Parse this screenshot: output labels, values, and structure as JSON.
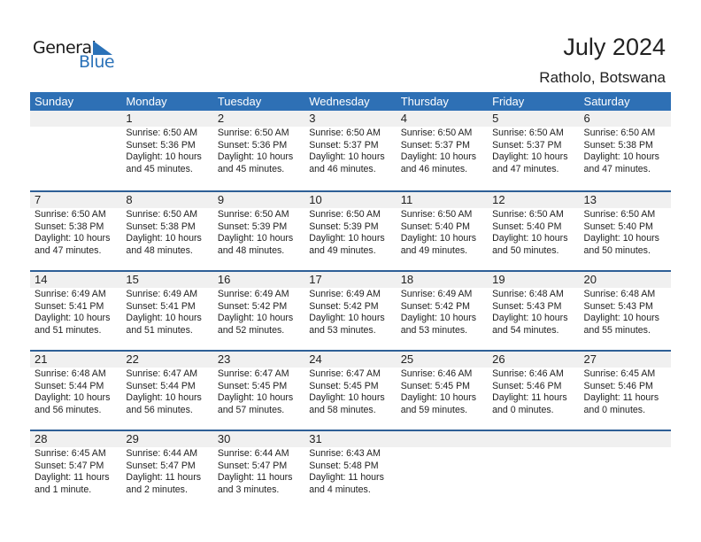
{
  "logo": {
    "text1": "General",
    "text2": "Blue"
  },
  "header": {
    "title": "July 2024",
    "location": "Ratholo, Botswana"
  },
  "weekdays": [
    "Sunday",
    "Monday",
    "Tuesday",
    "Wednesday",
    "Thursday",
    "Friday",
    "Saturday"
  ],
  "colors": {
    "accent": "#2e70b5",
    "band": "#f0f0f0"
  },
  "weeks": [
    [
      null,
      {
        "day": "1",
        "sunrise": "Sunrise: 6:50 AM",
        "sunset": "Sunset: 5:36 PM",
        "daylight1": "Daylight: 10 hours",
        "daylight2": "and 45 minutes."
      },
      {
        "day": "2",
        "sunrise": "Sunrise: 6:50 AM",
        "sunset": "Sunset: 5:36 PM",
        "daylight1": "Daylight: 10 hours",
        "daylight2": "and 45 minutes."
      },
      {
        "day": "3",
        "sunrise": "Sunrise: 6:50 AM",
        "sunset": "Sunset: 5:37 PM",
        "daylight1": "Daylight: 10 hours",
        "daylight2": "and 46 minutes."
      },
      {
        "day": "4",
        "sunrise": "Sunrise: 6:50 AM",
        "sunset": "Sunset: 5:37 PM",
        "daylight1": "Daylight: 10 hours",
        "daylight2": "and 46 minutes."
      },
      {
        "day": "5",
        "sunrise": "Sunrise: 6:50 AM",
        "sunset": "Sunset: 5:37 PM",
        "daylight1": "Daylight: 10 hours",
        "daylight2": "and 47 minutes."
      },
      {
        "day": "6",
        "sunrise": "Sunrise: 6:50 AM",
        "sunset": "Sunset: 5:38 PM",
        "daylight1": "Daylight: 10 hours",
        "daylight2": "and 47 minutes."
      }
    ],
    [
      {
        "day": "7",
        "sunrise": "Sunrise: 6:50 AM",
        "sunset": "Sunset: 5:38 PM",
        "daylight1": "Daylight: 10 hours",
        "daylight2": "and 47 minutes."
      },
      {
        "day": "8",
        "sunrise": "Sunrise: 6:50 AM",
        "sunset": "Sunset: 5:38 PM",
        "daylight1": "Daylight: 10 hours",
        "daylight2": "and 48 minutes."
      },
      {
        "day": "9",
        "sunrise": "Sunrise: 6:50 AM",
        "sunset": "Sunset: 5:39 PM",
        "daylight1": "Daylight: 10 hours",
        "daylight2": "and 48 minutes."
      },
      {
        "day": "10",
        "sunrise": "Sunrise: 6:50 AM",
        "sunset": "Sunset: 5:39 PM",
        "daylight1": "Daylight: 10 hours",
        "daylight2": "and 49 minutes."
      },
      {
        "day": "11",
        "sunrise": "Sunrise: 6:50 AM",
        "sunset": "Sunset: 5:40 PM",
        "daylight1": "Daylight: 10 hours",
        "daylight2": "and 49 minutes."
      },
      {
        "day": "12",
        "sunrise": "Sunrise: 6:50 AM",
        "sunset": "Sunset: 5:40 PM",
        "daylight1": "Daylight: 10 hours",
        "daylight2": "and 50 minutes."
      },
      {
        "day": "13",
        "sunrise": "Sunrise: 6:50 AM",
        "sunset": "Sunset: 5:40 PM",
        "daylight1": "Daylight: 10 hours",
        "daylight2": "and 50 minutes."
      }
    ],
    [
      {
        "day": "14",
        "sunrise": "Sunrise: 6:49 AM",
        "sunset": "Sunset: 5:41 PM",
        "daylight1": "Daylight: 10 hours",
        "daylight2": "and 51 minutes."
      },
      {
        "day": "15",
        "sunrise": "Sunrise: 6:49 AM",
        "sunset": "Sunset: 5:41 PM",
        "daylight1": "Daylight: 10 hours",
        "daylight2": "and 51 minutes."
      },
      {
        "day": "16",
        "sunrise": "Sunrise: 6:49 AM",
        "sunset": "Sunset: 5:42 PM",
        "daylight1": "Daylight: 10 hours",
        "daylight2": "and 52 minutes."
      },
      {
        "day": "17",
        "sunrise": "Sunrise: 6:49 AM",
        "sunset": "Sunset: 5:42 PM",
        "daylight1": "Daylight: 10 hours",
        "daylight2": "and 53 minutes."
      },
      {
        "day": "18",
        "sunrise": "Sunrise: 6:49 AM",
        "sunset": "Sunset: 5:42 PM",
        "daylight1": "Daylight: 10 hours",
        "daylight2": "and 53 minutes."
      },
      {
        "day": "19",
        "sunrise": "Sunrise: 6:48 AM",
        "sunset": "Sunset: 5:43 PM",
        "daylight1": "Daylight: 10 hours",
        "daylight2": "and 54 minutes."
      },
      {
        "day": "20",
        "sunrise": "Sunrise: 6:48 AM",
        "sunset": "Sunset: 5:43 PM",
        "daylight1": "Daylight: 10 hours",
        "daylight2": "and 55 minutes."
      }
    ],
    [
      {
        "day": "21",
        "sunrise": "Sunrise: 6:48 AM",
        "sunset": "Sunset: 5:44 PM",
        "daylight1": "Daylight: 10 hours",
        "daylight2": "and 56 minutes."
      },
      {
        "day": "22",
        "sunrise": "Sunrise: 6:47 AM",
        "sunset": "Sunset: 5:44 PM",
        "daylight1": "Daylight: 10 hours",
        "daylight2": "and 56 minutes."
      },
      {
        "day": "23",
        "sunrise": "Sunrise: 6:47 AM",
        "sunset": "Sunset: 5:45 PM",
        "daylight1": "Daylight: 10 hours",
        "daylight2": "and 57 minutes."
      },
      {
        "day": "24",
        "sunrise": "Sunrise: 6:47 AM",
        "sunset": "Sunset: 5:45 PM",
        "daylight1": "Daylight: 10 hours",
        "daylight2": "and 58 minutes."
      },
      {
        "day": "25",
        "sunrise": "Sunrise: 6:46 AM",
        "sunset": "Sunset: 5:45 PM",
        "daylight1": "Daylight: 10 hours",
        "daylight2": "and 59 minutes."
      },
      {
        "day": "26",
        "sunrise": "Sunrise: 6:46 AM",
        "sunset": "Sunset: 5:46 PM",
        "daylight1": "Daylight: 11 hours",
        "daylight2": "and 0 minutes."
      },
      {
        "day": "27",
        "sunrise": "Sunrise: 6:45 AM",
        "sunset": "Sunset: 5:46 PM",
        "daylight1": "Daylight: 11 hours",
        "daylight2": "and 0 minutes."
      }
    ],
    [
      {
        "day": "28",
        "sunrise": "Sunrise: 6:45 AM",
        "sunset": "Sunset: 5:47 PM",
        "daylight1": "Daylight: 11 hours",
        "daylight2": "and 1 minute."
      },
      {
        "day": "29",
        "sunrise": "Sunrise: 6:44 AM",
        "sunset": "Sunset: 5:47 PM",
        "daylight1": "Daylight: 11 hours",
        "daylight2": "and 2 minutes."
      },
      {
        "day": "30",
        "sunrise": "Sunrise: 6:44 AM",
        "sunset": "Sunset: 5:47 PM",
        "daylight1": "Daylight: 11 hours",
        "daylight2": "and 3 minutes."
      },
      {
        "day": "31",
        "sunrise": "Sunrise: 6:43 AM",
        "sunset": "Sunset: 5:48 PM",
        "daylight1": "Daylight: 11 hours",
        "daylight2": "and 4 minutes."
      },
      null,
      null,
      null
    ]
  ]
}
